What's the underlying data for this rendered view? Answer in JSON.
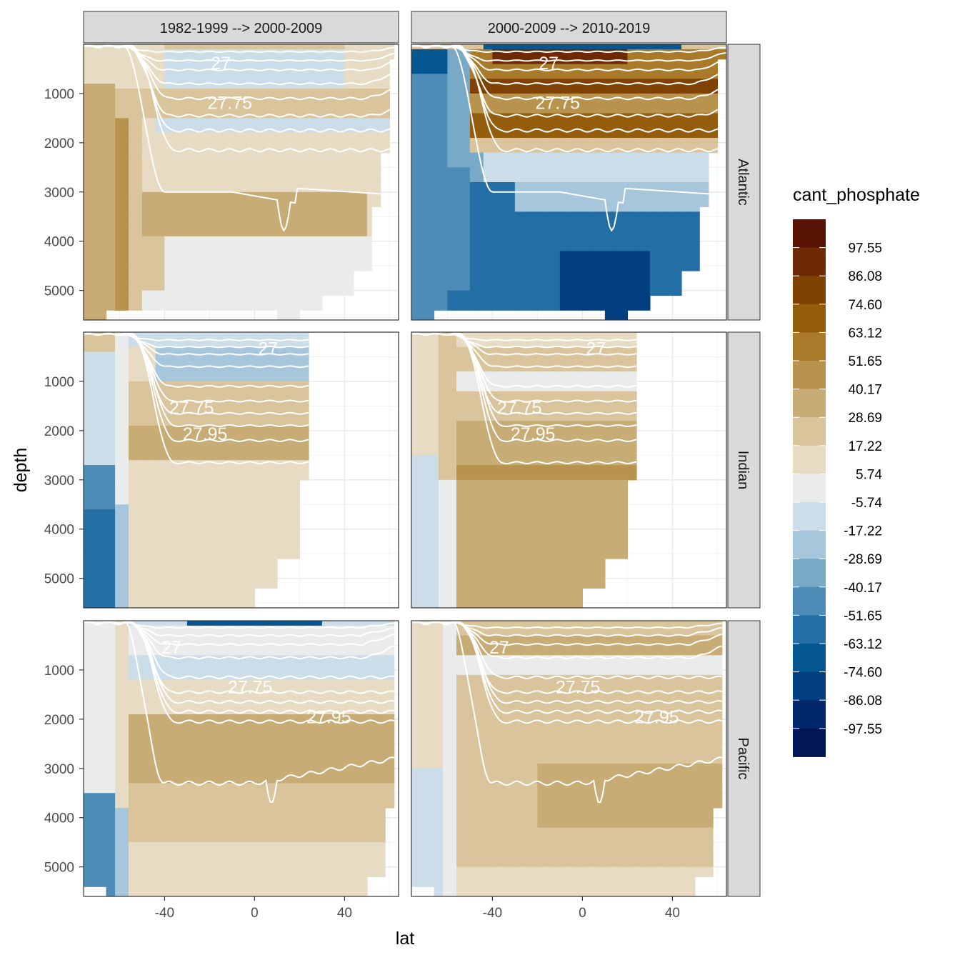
{
  "chart_data": {
    "type": "heatmap",
    "xlabel": "lat",
    "ylabel": "depth",
    "xlim": [
      -76,
      64
    ],
    "ylim": [
      5600,
      0
    ],
    "x_ticks": [
      "-40",
      "0",
      "40"
    ],
    "x_tick_values": [
      -40,
      0,
      40
    ],
    "y_ticks": [
      "1000",
      "2000",
      "3000",
      "4000",
      "5000"
    ],
    "y_tick_values": [
      1000,
      2000,
      3000,
      4000,
      5000
    ],
    "y_reversed": true,
    "column_facets": [
      "1982-1999 --> 2000-2009",
      "2000-2009 --> 2010-2019"
    ],
    "row_facets": [
      "Atlantic",
      "Indian",
      "Pacific"
    ],
    "legend": {
      "title": "cant_phosphate",
      "placement": "right",
      "labels": [
        "97.55",
        "86.08",
        "74.60",
        "63.12",
        "51.65",
        "40.17",
        "28.69",
        "17.22",
        "5.74",
        "-5.74",
        "-17.22",
        "-28.69",
        "-40.17",
        "-51.65",
        "-63.12",
        "-74.60",
        "-86.08",
        "-97.55"
      ],
      "colors": [
        "#5a1405",
        "#6e2a05",
        "#7f4203",
        "#935d0c",
        "#a87a2a",
        "#b8934e",
        "#c8ac75",
        "#d9c49c",
        "#e8dbc3",
        "#eaeceb",
        "#cbdde9",
        "#a6c7db",
        "#78aac8",
        "#4d8cb6",
        "#236ea4",
        "#055792",
        "#033f80",
        "#02276a",
        "#011654"
      ]
    },
    "contour_labels": [
      "27",
      "27.75",
      "27.95"
    ],
    "panels": [
      {
        "row": "Atlantic",
        "col": "1982-1999 --> 2000-2009",
        "lat_range": [
          -76,
          62
        ],
        "isopycnal_labels": [
          "27",
          "27.75"
        ]
      },
      {
        "row": "Atlantic",
        "col": "2000-2009 --> 2010-2019",
        "lat_range": [
          -76,
          64
        ],
        "isopycnal_labels": [
          "27",
          "27.75"
        ]
      },
      {
        "row": "Indian",
        "col": "1982-1999 --> 2000-2009",
        "lat_range": [
          -76,
          24
        ],
        "isopycnal_labels": [
          "27",
          "27.75",
          "27.95"
        ]
      },
      {
        "row": "Indian",
        "col": "2000-2009 --> 2010-2019",
        "lat_range": [
          -76,
          24
        ],
        "isopycnal_labels": [
          "27",
          "27.75",
          "27.95"
        ]
      },
      {
        "row": "Pacific",
        "col": "1982-1999 --> 2000-2009",
        "lat_range": [
          -76,
          62
        ],
        "isopycnal_labels": [
          "27",
          "27.75",
          "27.95"
        ]
      },
      {
        "row": "Pacific",
        "col": "2000-2009 --> 2010-2019",
        "lat_range": [
          -76,
          62
        ],
        "isopycnal_labels": [
          "27",
          "27.75",
          "27.95"
        ]
      }
    ]
  }
}
